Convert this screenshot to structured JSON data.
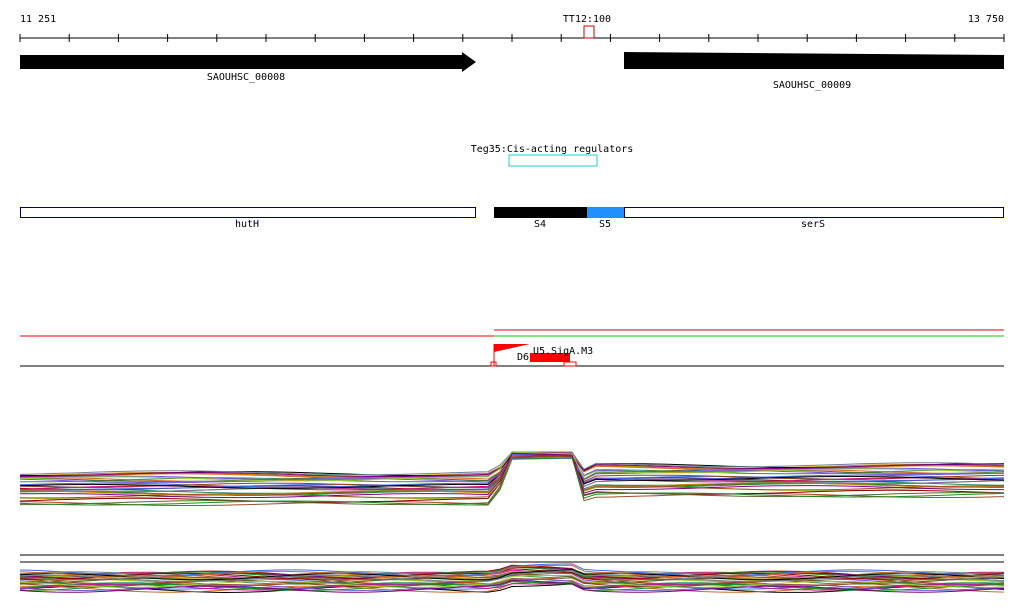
{
  "ruler": {
    "start_label": "11 251",
    "marker_label": "TT12:100",
    "end_label": "13 750"
  },
  "genes": [
    {
      "label": "SAOUHSC_00008"
    },
    {
      "label": "SAOUHSC_00009"
    }
  ],
  "regulator": {
    "label": "Teg35:Cis-acting regulators"
  },
  "operon": [
    {
      "label": "hutH"
    },
    {
      "label": "S4"
    },
    {
      "label": "S5"
    },
    {
      "label": "serS"
    }
  ],
  "promoters": [
    {
      "label": "U5.SigA.M3"
    },
    {
      "label": "D6"
    }
  ]
}
